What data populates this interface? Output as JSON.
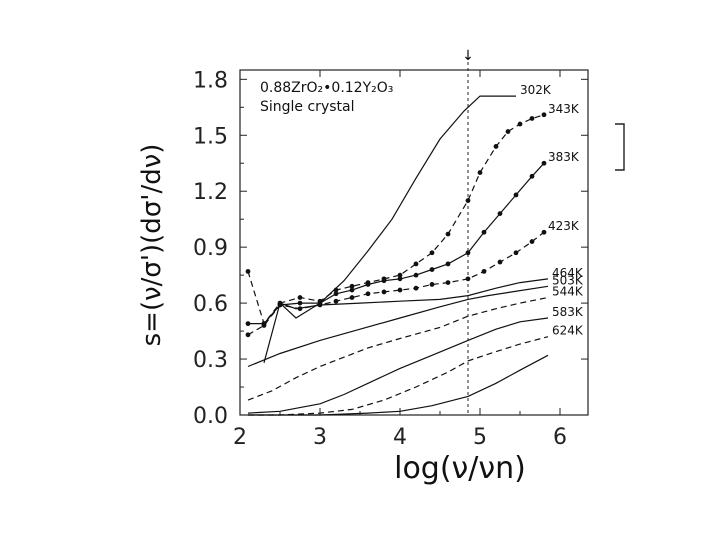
{
  "chart_data": {
    "type": "line",
    "title": "",
    "xlabel": "log(ν/νn)",
    "ylabel": "s=(ν/σ')(dσ'/dν)",
    "xlim": [
      2,
      6.35
    ],
    "ylim": [
      0,
      1.85
    ],
    "x_ticks": [
      "2",
      "3",
      "4",
      "5",
      "6"
    ],
    "y_ticks": [
      "0.0",
      "0.3",
      "0.6",
      "0.9",
      "1.2",
      "1.5",
      "1.8"
    ],
    "annotation": {
      "line1": "0.88ZrO₂•0.12Y₂O₃",
      "line2": "Single crystal"
    },
    "reference_line_x": 4.85,
    "series": [
      {
        "name": "302K",
        "style": "solid",
        "markers": false,
        "x": [
          2.3,
          2.5,
          2.7,
          3.0,
          3.3,
          3.6,
          3.9,
          4.2,
          4.5,
          4.8,
          5.0,
          5.2,
          5.45
        ],
        "y": [
          0.28,
          0.6,
          0.52,
          0.6,
          0.72,
          0.88,
          1.05,
          1.27,
          1.48,
          1.63,
          1.71,
          1.71,
          1.71
        ]
      },
      {
        "name": "343K",
        "style": "dashed",
        "markers": true,
        "x": [
          2.1,
          2.3,
          2.5,
          2.75,
          3.0,
          3.2,
          3.4,
          3.6,
          3.8,
          4.0,
          4.2,
          4.4,
          4.6,
          4.85,
          5.0,
          5.2,
          5.35,
          5.5,
          5.65,
          5.8
        ],
        "y": [
          0.77,
          0.49,
          0.6,
          0.63,
          0.61,
          0.67,
          0.69,
          0.71,
          0.73,
          0.75,
          0.81,
          0.87,
          0.97,
          1.15,
          1.3,
          1.44,
          1.52,
          1.56,
          1.59,
          1.61
        ]
      },
      {
        "name": "383K",
        "style": "solid",
        "markers": true,
        "x": [
          2.1,
          2.3,
          2.5,
          2.75,
          3.0,
          3.2,
          3.4,
          3.6,
          3.8,
          4.0,
          4.2,
          4.4,
          4.6,
          4.85,
          5.05,
          5.25,
          5.45,
          5.65,
          5.8
        ],
        "y": [
          0.49,
          0.49,
          0.59,
          0.6,
          0.6,
          0.65,
          0.67,
          0.7,
          0.72,
          0.73,
          0.75,
          0.78,
          0.81,
          0.87,
          0.98,
          1.08,
          1.18,
          1.28,
          1.35
        ]
      },
      {
        "name": "423K",
        "style": "dashed",
        "markers": true,
        "x": [
          2.1,
          2.3,
          2.5,
          2.75,
          3.0,
          3.2,
          3.4,
          3.6,
          3.8,
          4.0,
          4.2,
          4.4,
          4.6,
          4.85,
          5.05,
          5.25,
          5.45,
          5.65,
          5.8
        ],
        "y": [
          0.43,
          0.48,
          0.59,
          0.57,
          0.59,
          0.61,
          0.63,
          0.65,
          0.66,
          0.67,
          0.68,
          0.7,
          0.71,
          0.73,
          0.77,
          0.82,
          0.87,
          0.93,
          0.98
        ]
      },
      {
        "name": "464K",
        "style": "solid",
        "markers": false,
        "x": [
          2.5,
          2.7,
          3.0,
          3.5,
          4.0,
          4.5,
          4.85,
          5.2,
          5.5,
          5.85
        ],
        "y": [
          0.6,
          0.57,
          0.59,
          0.6,
          0.61,
          0.62,
          0.64,
          0.68,
          0.71,
          0.73
        ]
      },
      {
        "name": "503K",
        "style": "solid",
        "markers": false,
        "x": [
          2.1,
          2.5,
          3.0,
          3.5,
          4.0,
          4.5,
          4.85,
          5.1,
          5.4,
          5.85
        ],
        "y": [
          0.26,
          0.33,
          0.4,
          0.46,
          0.52,
          0.58,
          0.62,
          0.64,
          0.66,
          0.69
        ]
      },
      {
        "name": "544K",
        "style": "dashed",
        "markers": false,
        "x": [
          2.1,
          2.4,
          2.7,
          3.0,
          3.3,
          3.6,
          4.0,
          4.5,
          4.85,
          5.2,
          5.5,
          5.85
        ],
        "y": [
          0.08,
          0.13,
          0.2,
          0.26,
          0.31,
          0.36,
          0.41,
          0.47,
          0.53,
          0.57,
          0.6,
          0.63
        ]
      },
      {
        "name": "583K",
        "style": "solid",
        "markers": false,
        "x": [
          2.1,
          2.5,
          3.0,
          3.3,
          3.6,
          4.0,
          4.4,
          4.85,
          5.2,
          5.5,
          5.85
        ],
        "y": [
          0.01,
          0.02,
          0.06,
          0.11,
          0.17,
          0.25,
          0.32,
          0.4,
          0.46,
          0.5,
          0.52
        ]
      },
      {
        "name": "624K",
        "style": "dashed",
        "markers": false,
        "x": [
          2.1,
          2.5,
          3.0,
          3.4,
          3.8,
          4.2,
          4.6,
          4.85,
          5.2,
          5.5,
          5.85
        ],
        "y": [
          0.0,
          0.0,
          0.01,
          0.03,
          0.08,
          0.15,
          0.23,
          0.29,
          0.34,
          0.38,
          0.42
        ]
      },
      {
        "name": "",
        "style": "solid",
        "markers": false,
        "x": [
          2.1,
          3.0,
          3.6,
          4.0,
          4.4,
          4.85,
          5.2,
          5.5,
          5.85
        ],
        "y": [
          0.0,
          0.0,
          0.01,
          0.02,
          0.05,
          0.1,
          0.17,
          0.24,
          0.32
        ]
      }
    ]
  }
}
